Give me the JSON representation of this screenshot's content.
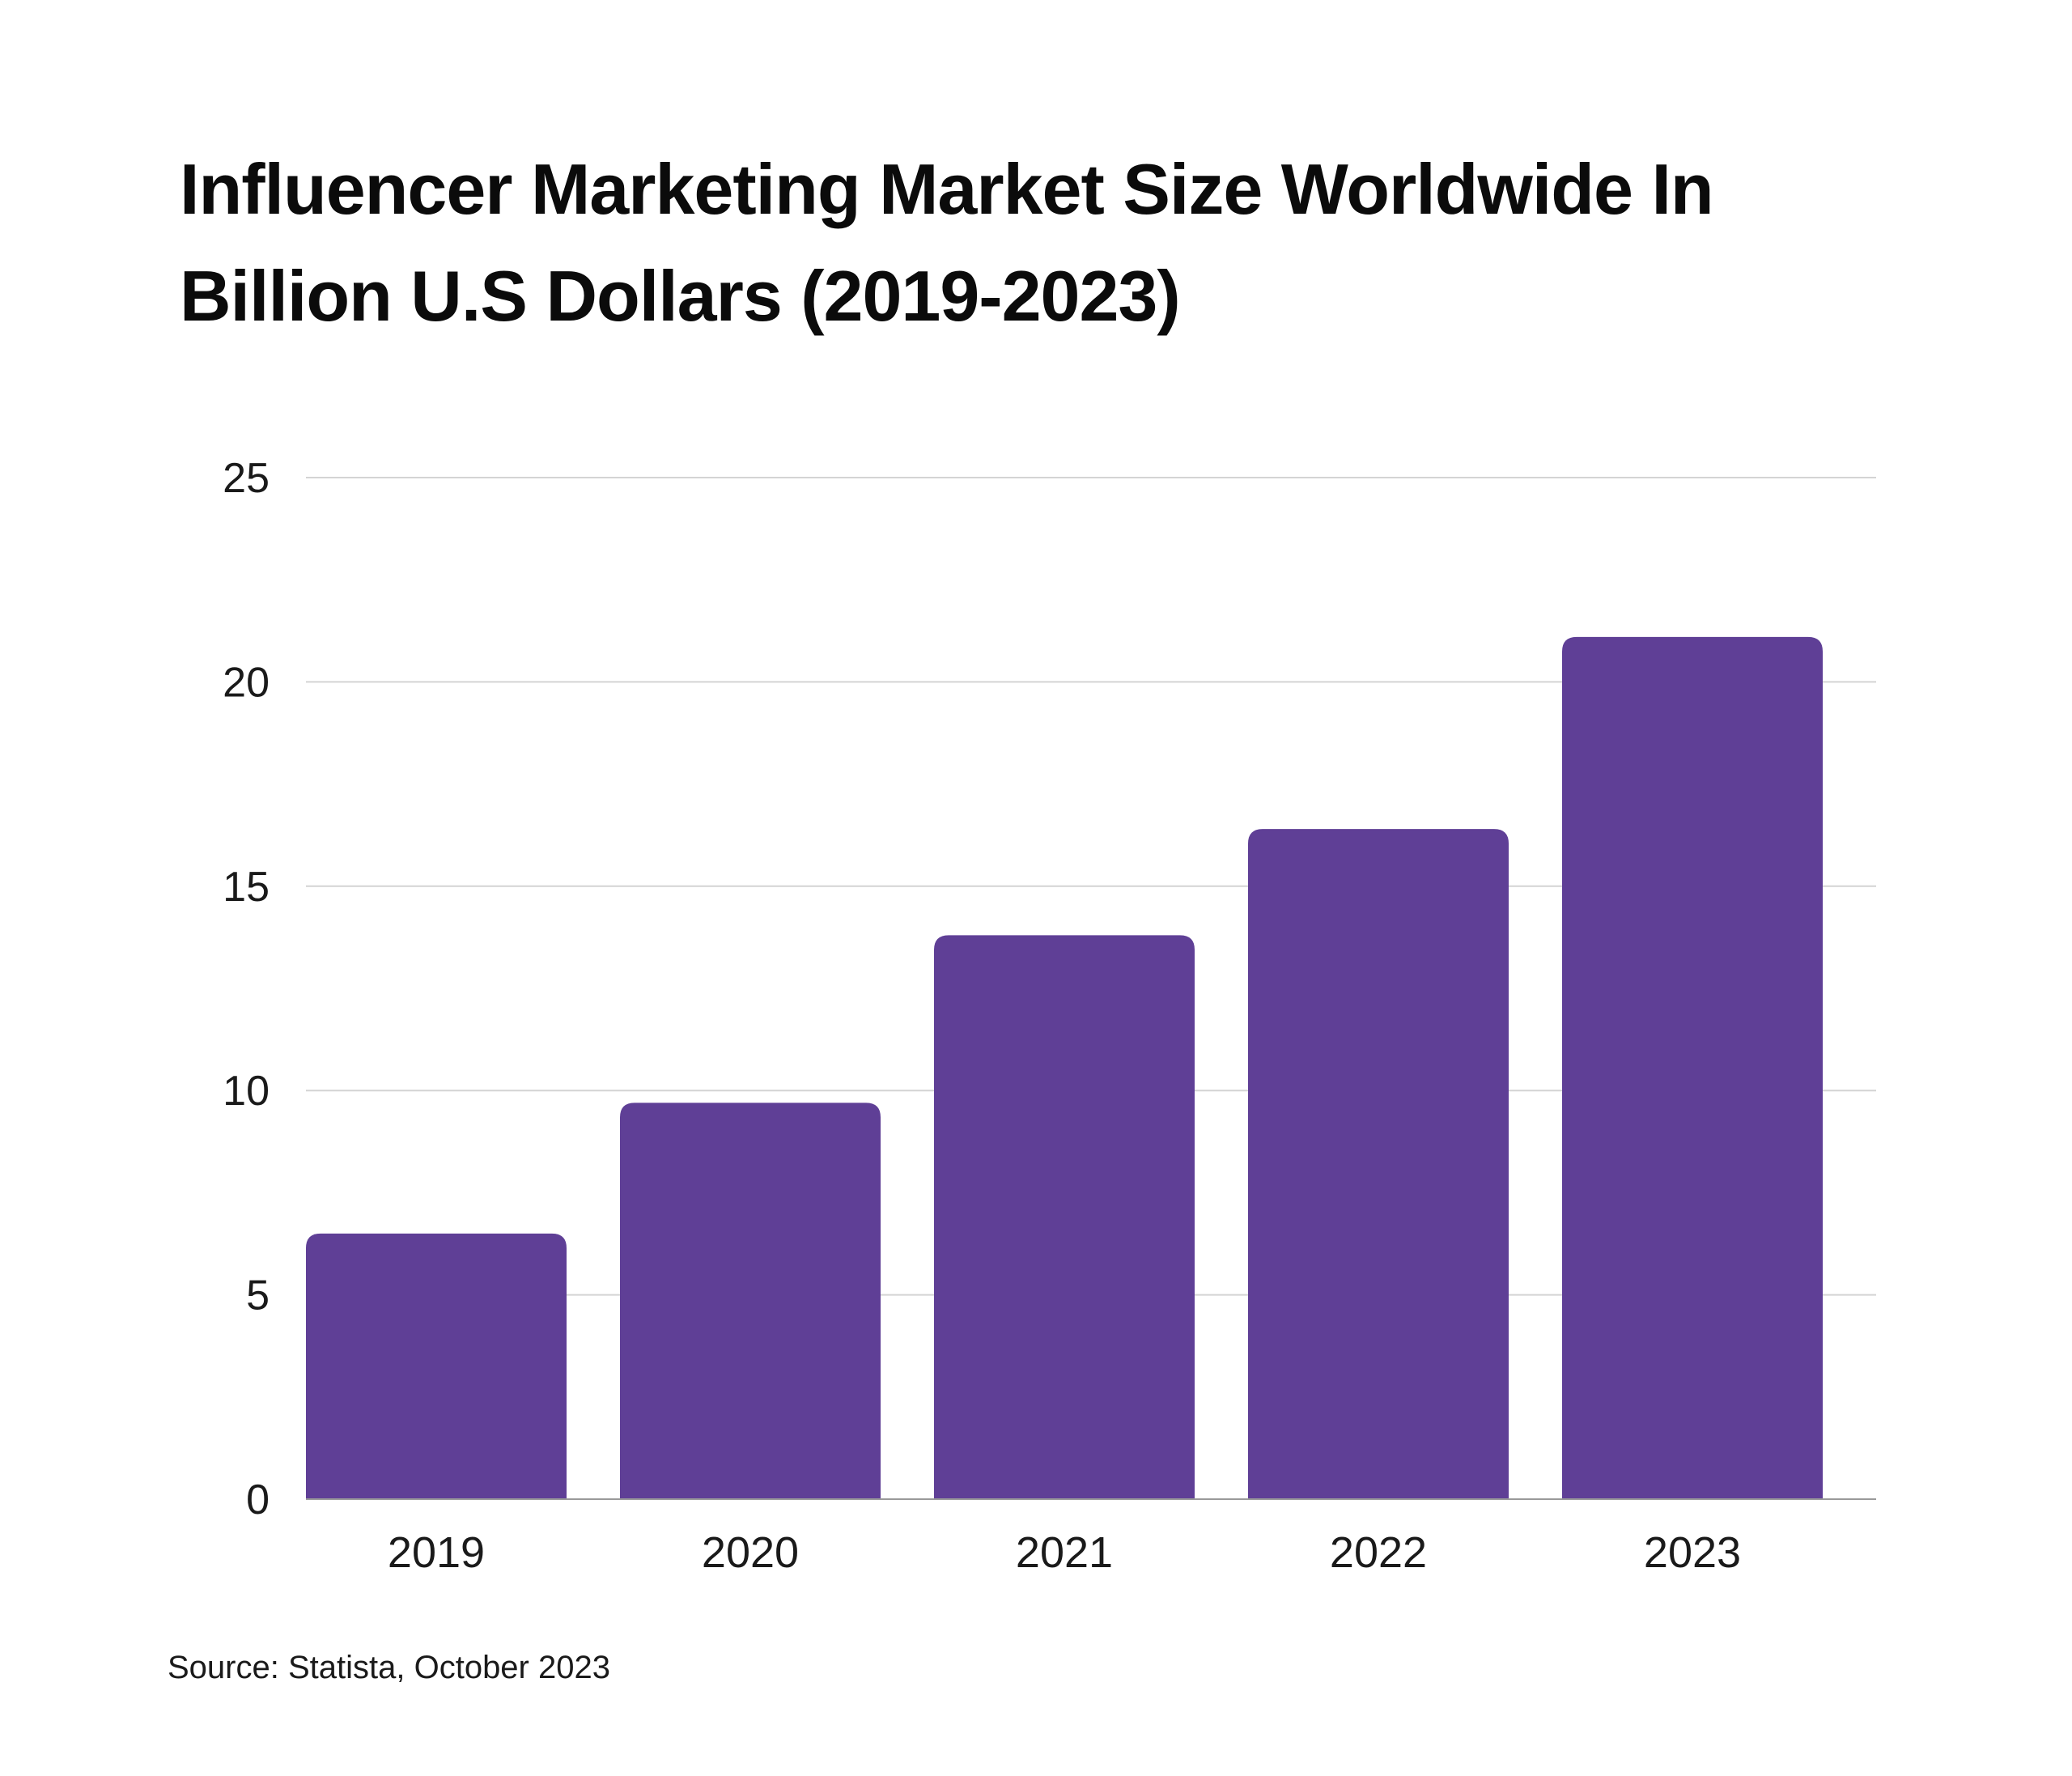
{
  "chart_data": {
    "type": "bar",
    "title": "Influencer Marketing Market Size Worldwide In Billion U.S Dollars (2019-2023)",
    "categories": [
      "2019",
      "2020",
      "2021",
      "2022",
      "2023"
    ],
    "values": [
      6.5,
      9.7,
      13.8,
      16.4,
      21.1
    ],
    "yticks": [
      "0",
      "5",
      "10",
      "15",
      "20",
      "25"
    ],
    "ylim": [
      0,
      25
    ],
    "grid": true,
    "bar_color": "#5f3f96",
    "grid_color": "#d4d4d4",
    "axis_color": "#9a9a9a"
  },
  "source": "Source: Statista, October 2023"
}
